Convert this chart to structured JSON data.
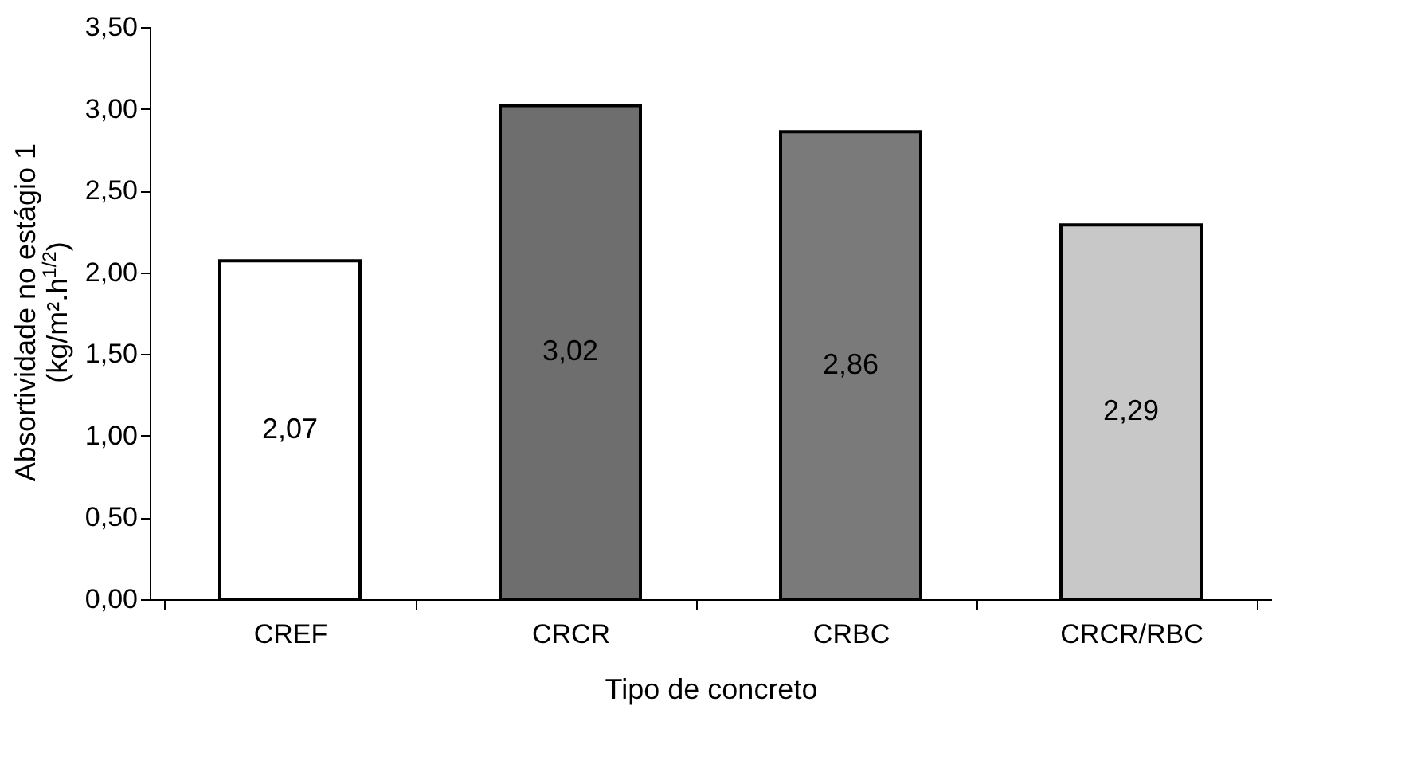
{
  "chart_data": {
    "type": "bar",
    "xlabel": "Tipo de concreto",
    "ylabel": "Absortividade no estágio 1\n(kg/m².h$^{1/2}$)",
    "categories": [
      "CREF",
      "CRCR",
      "CRBC",
      "CRCR/RBC"
    ],
    "values": [
      2.07,
      3.02,
      2.86,
      2.29
    ],
    "colors": [
      "#ffffff",
      "#6e6e6e",
      "#7a7a7a",
      "#c8c8c8"
    ],
    "value_labels": [
      "2,07",
      "3,02",
      "2,86",
      "2,29"
    ],
    "ylim": [
      0,
      3.5
    ],
    "yticks": [
      {
        "value": 0,
        "label": "0,00"
      },
      {
        "value": 0.5,
        "label": "0,50"
      },
      {
        "value": 1,
        "label": "1,00"
      },
      {
        "value": 1.5,
        "label": "1,50"
      },
      {
        "value": 2,
        "label": "2,00"
      },
      {
        "value": 2.5,
        "label": "2,50"
      },
      {
        "value": 3,
        "label": "3,00"
      },
      {
        "value": 3.5,
        "label": "3,50"
      }
    ],
    "grid": false
  }
}
